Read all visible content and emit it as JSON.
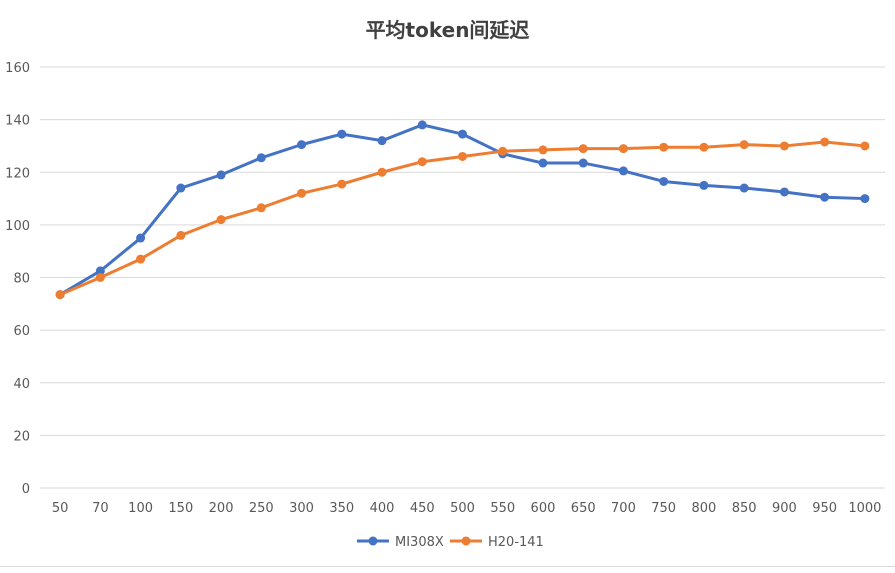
{
  "chart_data": {
    "type": "line",
    "title": "平均token间延迟",
    "xlabel": "",
    "ylabel": "",
    "categories": [
      "50",
      "70",
      "100",
      "150",
      "200",
      "250",
      "300",
      "350",
      "400",
      "450",
      "500",
      "550",
      "600",
      "650",
      "700",
      "750",
      "800",
      "850",
      "900",
      "950",
      "1000"
    ],
    "ylim": [
      0,
      160
    ],
    "yticks": [
      0,
      20,
      40,
      60,
      80,
      100,
      120,
      140,
      160
    ],
    "grid": true,
    "legend_position": "bottom",
    "series": [
      {
        "name": "MI308X",
        "color": "#4472c4",
        "values": [
          73.5,
          82.5,
          95,
          114,
          119,
          125.5,
          130.5,
          134.5,
          132,
          138,
          134.5,
          127,
          123.5,
          123.5,
          120.5,
          116.5,
          115,
          114,
          112.5,
          110.5,
          110
        ]
      },
      {
        "name": "H20-141",
        "color": "#ed7d31",
        "values": [
          73.5,
          80,
          87,
          96,
          102,
          106.5,
          112,
          115.5,
          120,
          124,
          126,
          128,
          128.5,
          129,
          129,
          129.5,
          129.5,
          130.5,
          130,
          131.5,
          130
        ]
      }
    ]
  }
}
